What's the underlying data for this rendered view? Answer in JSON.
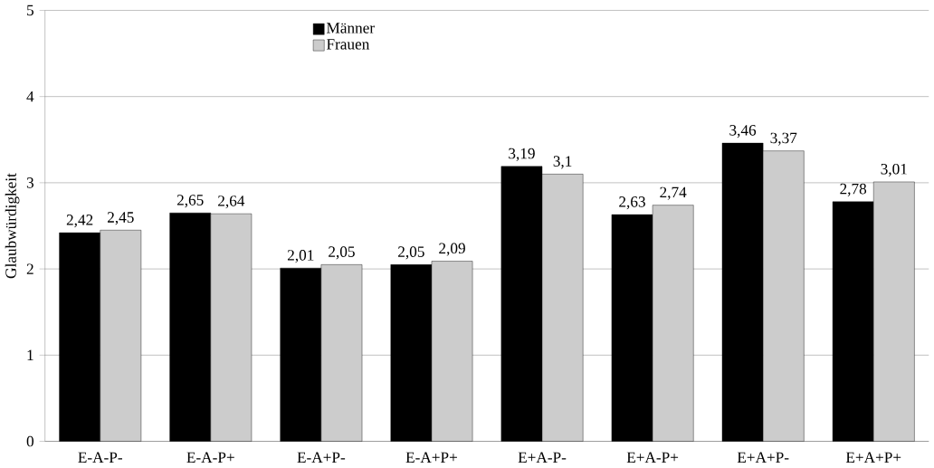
{
  "chart_data": {
    "type": "bar",
    "ylabel": "Glaubwürdigkeit",
    "categories": [
      "E-A-P-",
      "E-A-P+",
      "E-A+P-",
      "E-A+P+",
      "E+A-P-",
      "E+A-P+",
      "E+A+P-",
      "E+A+P+"
    ],
    "series": [
      {
        "name": "Männer",
        "color": "#000000",
        "values": [
          2.42,
          2.65,
          2.01,
          2.05,
          3.19,
          2.63,
          3.46,
          2.78
        ],
        "value_labels": [
          "2,42",
          "2,65",
          "2,01",
          "2,05",
          "3,19",
          "2,63",
          "3,46",
          "2,78"
        ]
      },
      {
        "name": "Frauen",
        "color": "#cccccc",
        "values": [
          2.45,
          2.64,
          2.05,
          2.09,
          3.1,
          2.74,
          3.37,
          3.01
        ],
        "value_labels": [
          "2,45",
          "2,64",
          "2,05",
          "2,09",
          "3,1",
          "2,74",
          "3,37",
          "3,01"
        ]
      }
    ],
    "ylim": [
      0,
      5
    ],
    "yticks": [
      0,
      1,
      2,
      3,
      4,
      5
    ],
    "grid": "y",
    "legend": "top left"
  }
}
